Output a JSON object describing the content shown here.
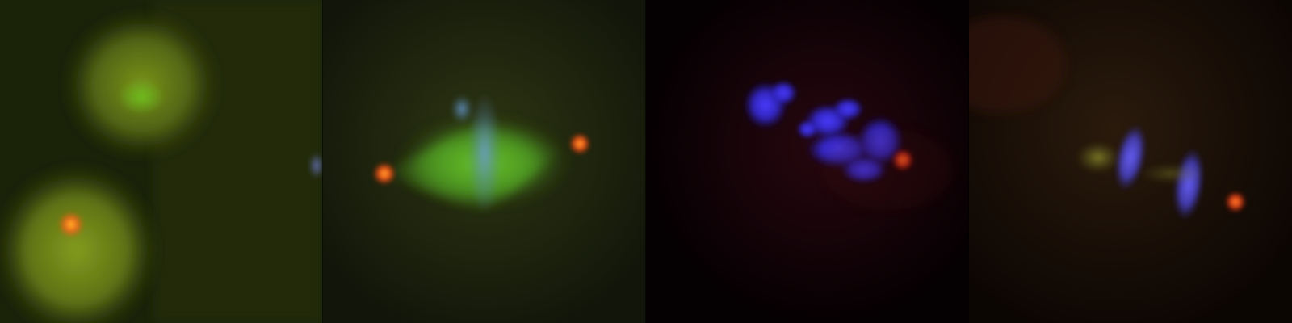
{
  "panels": [
    {
      "id": 1,
      "background": "#1a2208",
      "cytoplasm": "#8a9a1e",
      "centrosome": "#ff6a1c"
    },
    {
      "id": 2,
      "background": "#1a1f0a",
      "spindle": "#5fbf2a",
      "chromosomes": "#5a8fbf",
      "centrosome": "#ff5a1a"
    },
    {
      "id": 3,
      "background": "#060002",
      "chromosomes": "#3b32ff",
      "centrosome": "#ff3a1a"
    },
    {
      "id": 4,
      "background": "#150a04",
      "chromosomes": "#5a55ff",
      "centrosome": "#ff4a18"
    }
  ]
}
